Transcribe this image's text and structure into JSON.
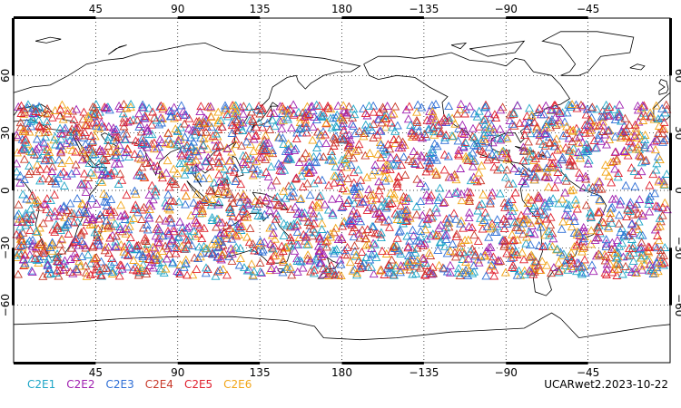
{
  "map": {
    "projection": "cylindrical-equidistant",
    "center_longitude": 180,
    "lon_range": [
      0,
      360
    ],
    "lat_range": [
      -90,
      90
    ],
    "grid": true,
    "top_lon_ticks": [
      "45",
      "90",
      "135",
      "180",
      "−135",
      "−90",
      "−45"
    ],
    "bottom_lon_ticks": [
      "45",
      "90",
      "135",
      "180",
      "−135",
      "−90",
      "−45"
    ],
    "lat_ticks": [
      "60",
      "30",
      "0",
      "−30",
      "−60"
    ],
    "top_lon_values": [
      45,
      90,
      135,
      180,
      225,
      270,
      315
    ],
    "lat_values": [
      60,
      30,
      0,
      -30,
      -60
    ],
    "marker_shape": "open-triangle",
    "observation_band_lat": [
      -45,
      45
    ]
  },
  "legend": [
    {
      "label": "C2E1",
      "color": "#1fa6c7"
    },
    {
      "label": "C2E2",
      "color": "#a020b0"
    },
    {
      "label": "C2E3",
      "color": "#2f6fd6"
    },
    {
      "label": "C2E4",
      "color": "#c83a2a"
    },
    {
      "label": "C2E5",
      "color": "#e0202e"
    },
    {
      "label": "C2E6",
      "color": "#f2a518"
    }
  ],
  "stamp": "UCARwet2.2023-10-22"
}
